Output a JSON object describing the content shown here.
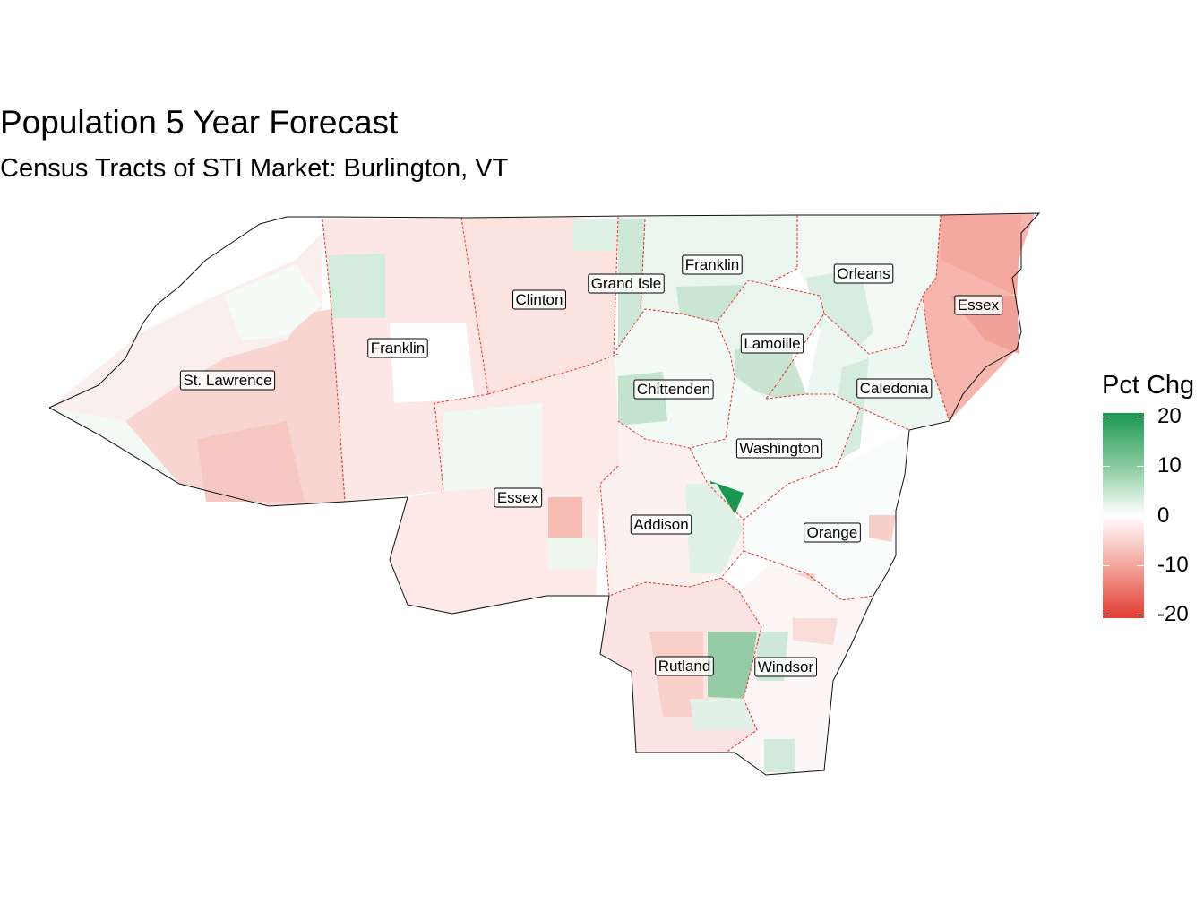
{
  "title": "Population 5 Year Forecast",
  "subtitle": "Census Tracts of STI Market: Burlington, VT",
  "legend": {
    "title": "Pct Chg",
    "labels": [
      "20",
      "10",
      "0",
      "-10",
      "-20"
    ],
    "values": [
      20,
      10,
      0,
      -10,
      -20
    ],
    "high_color": "#1a9850",
    "mid_color": "#ffffff",
    "low_color": "#e03c31"
  },
  "counties": [
    {
      "name": "St. Lawrence"
    },
    {
      "name": "Franklin"
    },
    {
      "name": "Clinton"
    },
    {
      "name": "Grand Isle"
    },
    {
      "name": "Franklin"
    },
    {
      "name": "Orleans"
    },
    {
      "name": "Essex"
    },
    {
      "name": "Lamoille"
    },
    {
      "name": "Chittenden"
    },
    {
      "name": "Caledonia"
    },
    {
      "name": "Essex"
    },
    {
      "name": "Washington"
    },
    {
      "name": "Addison"
    },
    {
      "name": "Orange"
    },
    {
      "name": "Rutland"
    },
    {
      "name": "Windsor"
    }
  ]
}
